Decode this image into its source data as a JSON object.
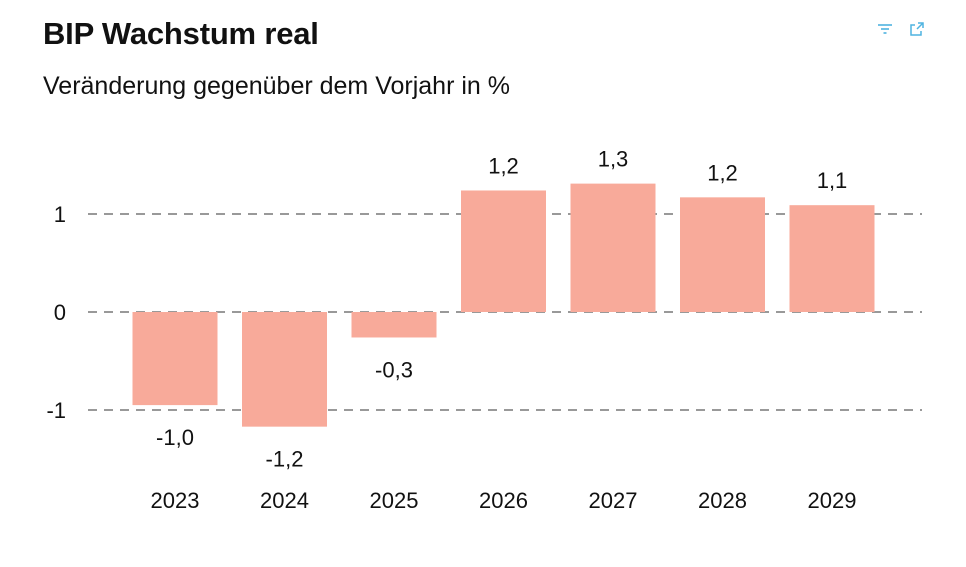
{
  "header": {
    "title": "BIP Wachstum real",
    "subtitle": "Veränderung gegenüber dem Vorjahr in %",
    "icons": [
      "filter-icon",
      "expand-icon"
    ]
  },
  "colors": {
    "bar": "#F8AA9A",
    "grid": "#999999",
    "icon": "#4FB3E0"
  },
  "chart_data": {
    "type": "bar",
    "title": "BIP Wachstum real",
    "subtitle": "Veränderung gegenüber dem Vorjahr in %",
    "categories": [
      "2023",
      "2024",
      "2025",
      "2026",
      "2027",
      "2028",
      "2029"
    ],
    "values": [
      -0.95,
      -1.17,
      -0.26,
      1.24,
      1.31,
      1.17,
      1.09
    ],
    "value_labels": [
      "-1,0",
      "-1,2",
      "-0,3",
      "1,2",
      "1,3",
      "1,2",
      "1,1"
    ],
    "yticks": [
      1,
      0,
      -1
    ],
    "ytick_labels": [
      "1",
      "0",
      "-1"
    ],
    "ylim": [
      -1.5,
      1.6
    ],
    "grid": "dashed horizontal",
    "legend": "none"
  }
}
